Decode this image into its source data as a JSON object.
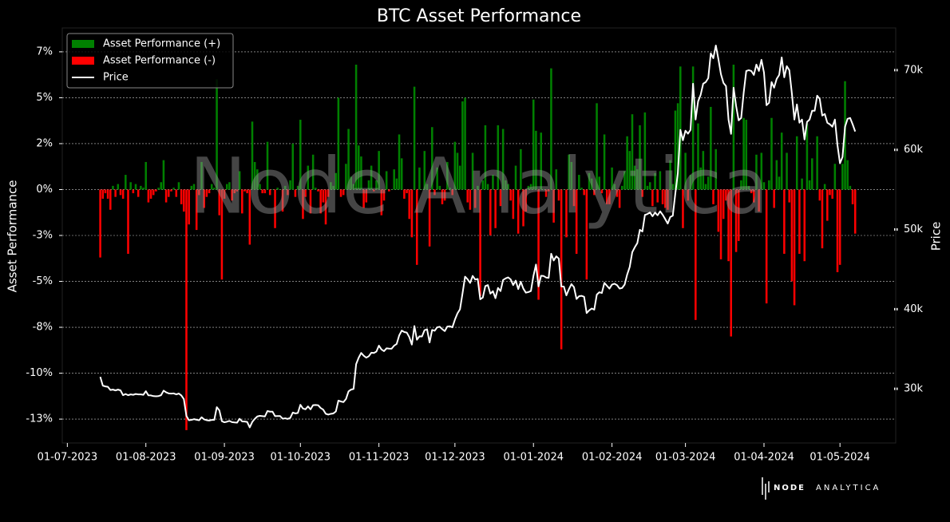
{
  "chart_data": {
    "type": "bar-line",
    "title": "BTC Asset Performance",
    "y_label": "Asset Performance",
    "y2_label": "Price",
    "watermark": "Node Analytica",
    "brand": {
      "bold": "NODE",
      "light": "ANALYTICA"
    },
    "xlim": [
      "2023-06-29",
      "2024-05-23"
    ],
    "xticks": [
      {
        "value": "2023-07-01",
        "label": "01-07-2023"
      },
      {
        "value": "2023-08-01",
        "label": "01-08-2023"
      },
      {
        "value": "2023-09-01",
        "label": "01-09-2023"
      },
      {
        "value": "2023-10-01",
        "label": "01-10-2023"
      },
      {
        "value": "2023-11-01",
        "label": "01-11-2023"
      },
      {
        "value": "2023-12-01",
        "label": "01-12-2023"
      },
      {
        "value": "2024-01-01",
        "label": "01-01-2024"
      },
      {
        "value": "2024-02-01",
        "label": "01-02-2024"
      },
      {
        "value": "2024-03-01",
        "label": "01-03-2024"
      },
      {
        "value": "2024-04-01",
        "label": "01-04-2024"
      },
      {
        "value": "2024-05-01",
        "label": "01-05-2024"
      }
    ],
    "ylim": [
      -13.8,
      8.8
    ],
    "yticks": [
      {
        "value": 7.5,
        "label": "7%"
      },
      {
        "value": 5,
        "label": "5%"
      },
      {
        "value": 2.5,
        "label": "2%"
      },
      {
        "value": 0,
        "label": "0%"
      },
      {
        "value": -2.5,
        "label": "-3%"
      },
      {
        "value": -5,
        "label": "-5%"
      },
      {
        "value": -7.5,
        "label": "-8%"
      },
      {
        "value": -10,
        "label": "-10%"
      },
      {
        "value": -12.5,
        "label": "-13%"
      }
    ],
    "y2lim": [
      23200,
      75300
    ],
    "y2ticks": [
      {
        "value": 30000,
        "label": "30k"
      },
      {
        "value": 40000,
        "label": "40k"
      },
      {
        "value": 50000,
        "label": "50k"
      },
      {
        "value": 60000,
        "label": "60k"
      },
      {
        "value": 70000,
        "label": "70k"
      }
    ],
    "grid": true,
    "legend": "upper left",
    "x": [
      "2023-07-14",
      "2023-07-15",
      "2023-07-16",
      "2023-07-17",
      "2023-07-18",
      "2023-07-19",
      "2023-07-20",
      "2023-07-21",
      "2023-07-22",
      "2023-07-23",
      "2023-07-24",
      "2023-07-25",
      "2023-07-26",
      "2023-07-27",
      "2023-07-28",
      "2023-07-29",
      "2023-07-30",
      "2023-07-31",
      "2023-08-01",
      "2023-08-02",
      "2023-08-03",
      "2023-08-04",
      "2023-08-05",
      "2023-08-06",
      "2023-08-07",
      "2023-08-08",
      "2023-08-09",
      "2023-08-10",
      "2023-08-11",
      "2023-08-12",
      "2023-08-13",
      "2023-08-14",
      "2023-08-15",
      "2023-08-16",
      "2023-08-17",
      "2023-08-18",
      "2023-08-19",
      "2023-08-20",
      "2023-08-21",
      "2023-08-22",
      "2023-08-23",
      "2023-08-24",
      "2023-08-25",
      "2023-08-26",
      "2023-08-27",
      "2023-08-28",
      "2023-08-29",
      "2023-08-30",
      "2023-08-31",
      "2023-09-01",
      "2023-09-02",
      "2023-09-03",
      "2023-09-04",
      "2023-09-05",
      "2023-09-06",
      "2023-09-07",
      "2023-09-08",
      "2023-09-09",
      "2023-09-10",
      "2023-09-11",
      "2023-09-12",
      "2023-09-13",
      "2023-09-14",
      "2023-09-15",
      "2023-09-16",
      "2023-09-17",
      "2023-09-18",
      "2023-09-19",
      "2023-09-20",
      "2023-09-21",
      "2023-09-22",
      "2023-09-23",
      "2023-09-24",
      "2023-09-25",
      "2023-09-26",
      "2023-09-27",
      "2023-09-28",
      "2023-09-29",
      "2023-09-30",
      "2023-10-01",
      "2023-10-02",
      "2023-10-03",
      "2023-10-04",
      "2023-10-05",
      "2023-10-06",
      "2023-10-07",
      "2023-10-08",
      "2023-10-09",
      "2023-10-10",
      "2023-10-11",
      "2023-10-12",
      "2023-10-13",
      "2023-10-14",
      "2023-10-15",
      "2023-10-16",
      "2023-10-17",
      "2023-10-18",
      "2023-10-19",
      "2023-10-20",
      "2023-10-21",
      "2023-10-22",
      "2023-10-23",
      "2023-10-24",
      "2023-10-25",
      "2023-10-26",
      "2023-10-27",
      "2023-10-28",
      "2023-10-29",
      "2023-10-30",
      "2023-10-31",
      "2023-11-01",
      "2023-11-02",
      "2023-11-03",
      "2023-11-04",
      "2023-11-05",
      "2023-11-06",
      "2023-11-07",
      "2023-11-08",
      "2023-11-09",
      "2023-11-10",
      "2023-11-11",
      "2023-11-12",
      "2023-11-13",
      "2023-11-14",
      "2023-11-15",
      "2023-11-16",
      "2023-11-17",
      "2023-11-18",
      "2023-11-19",
      "2023-11-20",
      "2023-11-21",
      "2023-11-22",
      "2023-11-23",
      "2023-11-24",
      "2023-11-25",
      "2023-11-26",
      "2023-11-27",
      "2023-11-28",
      "2023-11-29",
      "2023-11-30",
      "2023-12-01",
      "2023-12-02",
      "2023-12-03",
      "2023-12-04",
      "2023-12-05",
      "2023-12-06",
      "2023-12-07",
      "2023-12-08",
      "2023-12-09",
      "2023-12-10",
      "2023-12-11",
      "2023-12-12",
      "2023-12-13",
      "2023-12-14",
      "2023-12-15",
      "2023-12-16",
      "2023-12-17",
      "2023-12-18",
      "2023-12-19",
      "2023-12-20",
      "2023-12-21",
      "2023-12-22",
      "2023-12-23",
      "2023-12-24",
      "2023-12-25",
      "2023-12-26",
      "2023-12-27",
      "2023-12-28",
      "2023-12-29",
      "2023-12-30",
      "2023-12-31",
      "2024-01-01",
      "2024-01-02",
      "2024-01-03",
      "2024-01-04",
      "2024-01-05",
      "2024-01-06",
      "2024-01-07",
      "2024-01-08",
      "2024-01-09",
      "2024-01-10",
      "2024-01-11",
      "2024-01-12",
      "2024-01-13",
      "2024-01-14",
      "2024-01-15",
      "2024-01-16",
      "2024-01-17",
      "2024-01-18",
      "2024-01-19",
      "2024-01-20",
      "2024-01-21",
      "2024-01-22",
      "2024-01-23",
      "2024-01-24",
      "2024-01-25",
      "2024-01-26",
      "2024-01-27",
      "2024-01-28",
      "2024-01-29",
      "2024-01-30",
      "2024-01-31",
      "2024-02-01",
      "2024-02-02",
      "2024-02-03",
      "2024-02-04",
      "2024-02-05",
      "2024-02-06",
      "2024-02-07",
      "2024-02-08",
      "2024-02-09",
      "2024-02-10",
      "2024-02-11",
      "2024-02-12",
      "2024-02-13",
      "2024-02-14",
      "2024-02-15",
      "2024-02-16",
      "2024-02-17",
      "2024-02-18",
      "2024-02-19",
      "2024-02-20",
      "2024-02-21",
      "2024-02-22",
      "2024-02-23",
      "2024-02-24",
      "2024-02-25",
      "2024-02-26",
      "2024-02-27",
      "2024-02-28",
      "2024-02-29",
      "2024-03-01",
      "2024-03-02",
      "2024-03-03",
      "2024-03-04",
      "2024-03-05",
      "2024-03-06",
      "2024-03-07",
      "2024-03-08",
      "2024-03-09",
      "2024-03-10",
      "2024-03-11",
      "2024-03-12",
      "2024-03-13",
      "2024-03-14",
      "2024-03-15",
      "2024-03-16",
      "2024-03-17",
      "2024-03-18",
      "2024-03-19",
      "2024-03-20",
      "2024-03-21",
      "2024-03-22",
      "2024-03-23",
      "2024-03-24",
      "2024-03-25",
      "2024-03-26",
      "2024-03-27",
      "2024-03-28",
      "2024-03-29",
      "2024-03-30",
      "2024-03-31",
      "2024-04-01",
      "2024-04-02",
      "2024-04-03",
      "2024-04-04",
      "2024-04-05",
      "2024-04-06",
      "2024-04-07",
      "2024-04-08",
      "2024-04-09",
      "2024-04-10",
      "2024-04-11",
      "2024-04-12",
      "2024-04-13",
      "2024-04-14",
      "2024-04-15",
      "2024-04-16",
      "2024-04-17",
      "2024-04-18",
      "2024-04-19",
      "2024-04-20",
      "2024-04-21",
      "2024-04-22",
      "2024-04-23",
      "2024-04-24",
      "2024-04-25",
      "2024-04-26",
      "2024-04-27",
      "2024-04-28",
      "2024-04-29",
      "2024-04-30",
      "2024-05-01",
      "2024-05-02",
      "2024-05-03",
      "2024-05-04",
      "2024-05-05",
      "2024-05-06",
      "2024-05-07"
    ],
    "series": [
      {
        "type": "bar",
        "positive": {
          "name": "Asset Performance (+)",
          "color": "#008000"
        },
        "negative": {
          "name": "Asset Performance (-)",
          "color": "#ff0000"
        },
        "values": [
          -3.7,
          -0.5,
          -0.2,
          -0.5,
          -1.1,
          0.2,
          -0.4,
          0.3,
          -0.3,
          -0.5,
          0.8,
          -3.5,
          0.4,
          -0.2,
          0.3,
          -0.4,
          0.2,
          0.1,
          1.5,
          -0.7,
          -0.5,
          -0.3,
          -0.1,
          0.1,
          0.4,
          1.6,
          -0.7,
          -0.4,
          -0.1,
          0.1,
          -0.4,
          0.4,
          -0.8,
          -1.2,
          -13.1,
          -1.9,
          0.2,
          0.3,
          -2.2,
          -0.3,
          1.5,
          -1.0,
          -0.4,
          -0.2,
          0.3,
          0.1,
          6.0,
          -1.4,
          -4.9,
          -0.5,
          0.3,
          0.4,
          -0.6,
          -0.2,
          -0.1,
          1.0,
          -1.3,
          -0.1,
          -0.2,
          -3.0,
          3.7,
          1.5,
          1.1,
          0.3,
          -0.2,
          -0.2,
          2.6,
          -0.3,
          0.0,
          -2.1,
          0.1,
          0.0,
          -1.2,
          0.2,
          -0.3,
          0.5,
          2.5,
          -0.4,
          0.2,
          3.8,
          -1.6,
          -0.4,
          1.3,
          -1.3,
          1.9,
          0.1,
          -0.1,
          -1.3,
          -0.7,
          -1.9,
          -0.4,
          0.4,
          0.2,
          0.9,
          5.0,
          -0.4,
          -0.3,
          1.4,
          3.3,
          0.7,
          0.3,
          6.8,
          2.4,
          1.8,
          -1.0,
          -0.7,
          0.5,
          1.3,
          -0.1,
          0.5,
          2.1,
          -1.4,
          -0.6,
          1.0,
          -0.1,
          0.0,
          1.1,
          0.6,
          3.0,
          1.7,
          -0.5,
          -0.2,
          -1.6,
          -2.6,
          5.6,
          -4.1,
          1.2,
          0.0,
          2.1,
          0.3,
          -3.1,
          3.4,
          -0.3,
          1.2,
          0.2,
          -0.8,
          -0.6,
          1.5,
          0.1,
          -0.3,
          2.6,
          2.0,
          1.3,
          4.8,
          5.0,
          -0.7,
          -1.1,
          2.0,
          -1.0,
          0.2,
          -5.8,
          0.5,
          3.5,
          0.3,
          -2.5,
          0.8,
          -2.1,
          3.5,
          -0.9,
          3.3,
          0.5,
          0.3,
          -0.6,
          -1.6,
          1.3,
          -2.4,
          2.2,
          -2.0,
          -1.2,
          0.2,
          0.3,
          4.9,
          3.2,
          -6.0,
          3.1,
          0.0,
          -0.4,
          -0.1,
          6.6,
          -1.8,
          1.1,
          -0.6,
          -8.7,
          0.0,
          -2.6,
          1.9,
          1.5,
          -0.9,
          -3.5,
          0.8,
          0.1,
          -0.3,
          -4.9,
          0.9,
          0.6,
          -0.3,
          4.7,
          0.7,
          -0.2,
          3.0,
          -0.8,
          -0.8,
          1.2,
          0.3,
          -0.4,
          -1.0,
          0.2,
          1.0,
          2.9,
          2.1,
          4.1,
          1.3,
          1.1,
          3.5,
          -0.4,
          4.2,
          0.2,
          0.4,
          -0.9,
          0.9,
          -0.7,
          1.0,
          -0.8,
          -1.0,
          -1.1,
          1.6,
          0.3,
          4.3,
          4.7,
          6.7,
          -2.1,
          2.0,
          -0.6,
          0.8,
          6.7,
          -7.1,
          3.6,
          1.2,
          2.1,
          0.3,
          0.7,
          4.5,
          -0.8,
          2.2,
          -2.3,
          -3.8,
          -1.6,
          -0.6,
          -3.9,
          -8.0,
          6.8,
          -3.4,
          -2.8,
          0.5,
          3.9,
          3.8,
          0.2,
          -0.2,
          -0.7,
          1.9,
          -1.2,
          2.0,
          0.4,
          -6.2,
          0.5,
          3.9,
          -1.0,
          1.6,
          0.7,
          3.1,
          -3.5,
          2.0,
          -0.7,
          -5.0,
          -6.3,
          2.9,
          -3.5,
          0.6,
          -3.9,
          3.6,
          0.5,
          1.7,
          0.0,
          2.9,
          -0.6,
          -3.2,
          0.3,
          -1.7,
          -0.3,
          -0.5,
          1.4,
          -4.5,
          -4.1,
          1.4,
          5.9,
          1.6,
          0.2,
          -0.8,
          -2.4
        ]
      },
      {
        "type": "line",
        "name": "Price",
        "color": "#ffffff",
        "axis": "y2",
        "values": [
          31500,
          30400,
          30300,
          30250,
          29850,
          29900,
          29800,
          29900,
          29800,
          29200,
          29350,
          29200,
          29300,
          29250,
          29350,
          29300,
          29300,
          29250,
          29700,
          29180,
          29170,
          29080,
          29060,
          29090,
          29200,
          29770,
          29560,
          29430,
          29400,
          29420,
          29300,
          29410,
          29170,
          28700,
          26600,
          26050,
          26100,
          26190,
          26120,
          26050,
          26430,
          26160,
          26060,
          26020,
          26090,
          26100,
          27700,
          27300,
          25940,
          25800,
          25870,
          25970,
          25820,
          25780,
          25750,
          26240,
          25910,
          25890,
          25840,
          25160,
          25840,
          26230,
          26530,
          26610,
          26570,
          26530,
          27210,
          27130,
          27130,
          26570,
          26580,
          26580,
          26250,
          26300,
          26220,
          26350,
          27020,
          26910,
          26970,
          27990,
          27530,
          27430,
          27790,
          27420,
          27950,
          27970,
          27940,
          27590,
          27390,
          26870,
          26760,
          26860,
          26910,
          27160,
          28520,
          28410,
          28330,
          28720,
          29680,
          29900,
          29990,
          33090,
          33900,
          34500,
          34150,
          33910,
          34090,
          34530,
          34500,
          34670,
          35420,
          34940,
          34730,
          35080,
          35050,
          35040,
          35420,
          35630,
          36700,
          37310,
          37130,
          37060,
          36480,
          35550,
          37880,
          36160,
          36590,
          36580,
          37360,
          37470,
          35820,
          37390,
          37290,
          37720,
          37790,
          37480,
          37250,
          37820,
          37850,
          37720,
          38690,
          39470,
          39980,
          41980,
          44080,
          43750,
          43290,
          44170,
          43720,
          43790,
          41240,
          41450,
          42890,
          43020,
          41940,
          42260,
          41370,
          42660,
          42270,
          43660,
          43860,
          43990,
          43740,
          43020,
          43580,
          42520,
          43440,
          42580,
          42070,
          42140,
          42280,
          44180,
          45600,
          42850,
          44190,
          44160,
          43970,
          43930,
          46960,
          46110,
          46630,
          46340,
          42850,
          42840,
          41730,
          42510,
          43140,
          42760,
          41280,
          41620,
          41670,
          41550,
          39510,
          39850,
          40080,
          39940,
          41820,
          42120,
          42030,
          43300,
          42940,
          42580,
          43080,
          43190,
          43010,
          42580,
          42660,
          43090,
          44350,
          45300,
          47150,
          47770,
          48290,
          49960,
          49740,
          51830,
          51940,
          52140,
          51660,
          52120,
          51780,
          52280,
          51850,
          51310,
          50740,
          51570,
          51730,
          54520,
          57090,
          62500,
          61200,
          62400,
          62030,
          62500,
          68300,
          63800,
          66100,
          66900,
          68300,
          68500,
          69000,
          72100,
          71500,
          73100,
          71400,
          69500,
          68400,
          68000,
          63800,
          62000,
          67800,
          65500,
          63700,
          64000,
          67200,
          69900,
          70000,
          69900,
          69400,
          70700,
          69900,
          71300,
          69700,
          65600,
          65900,
          68500,
          67800,
          68900,
          69400,
          71600,
          69100,
          70500,
          70000,
          67100,
          63800,
          65700,
          63400,
          63800,
          61300,
          63500,
          63800,
          64900,
          64900,
          66800,
          66400,
          64300,
          64500,
          63400,
          63200,
          62900,
          63800,
          60600,
          58300,
          59100,
          62900,
          63900,
          64000,
          63200,
          62300
        ]
      }
    ]
  }
}
